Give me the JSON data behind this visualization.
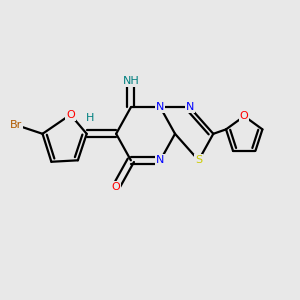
{
  "bg_color": "#e8e8e8",
  "bond_color": "#000000",
  "atom_colors": {
    "Br": "#b05a00",
    "O": "#ff0000",
    "N": "#0000ff",
    "S": "#cccc00",
    "H_teal": "#008080",
    "C": "#000000"
  },
  "figsize": [
    3.0,
    3.0
  ],
  "dpi": 100
}
